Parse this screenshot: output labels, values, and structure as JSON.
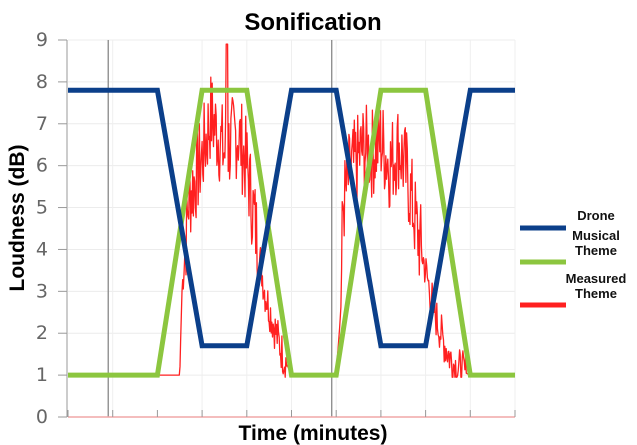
{
  "chart_data": {
    "type": "line",
    "title": "Sonification",
    "xlabel": "Time (minutes)",
    "ylabel": "Loudness (dB)",
    "ylim": [
      0,
      9
    ],
    "yticks": [
      0,
      1,
      2,
      3,
      4,
      5,
      6,
      7,
      8,
      9
    ],
    "xlim": [
      0,
      100
    ],
    "grid": true,
    "legend_position": "right",
    "series": [
      {
        "name": "Drone",
        "color": "#0b3f8a",
        "x": [
          0,
          20,
          30,
          40,
          50,
          60,
          70,
          80,
          90,
          100
        ],
        "y": [
          7.8,
          7.8,
          1.7,
          1.7,
          7.8,
          7.8,
          1.7,
          1.7,
          7.8,
          7.8
        ]
      },
      {
        "name": "Musical Theme",
        "color": "#8cc63f",
        "x": [
          0,
          20,
          30,
          40,
          50,
          60,
          70,
          80,
          90,
          100
        ],
        "y": [
          1,
          1,
          7.8,
          7.8,
          1,
          1,
          7.8,
          7.8,
          1,
          1
        ]
      },
      {
        "name": "Measured Theme",
        "color": "#ff2020",
        "x": [
          0,
          25,
          25.5,
          27,
          30,
          32,
          35,
          38,
          40,
          42,
          44,
          46,
          48,
          50,
          60,
          61,
          61.5,
          63,
          66,
          68,
          70,
          72,
          74,
          76,
          78,
          80,
          82,
          84,
          86,
          88,
          90,
          100
        ],
        "y": [
          1,
          1,
          3,
          5.2,
          6.2,
          7.2,
          6.3,
          6.8,
          6.0,
          4.5,
          3.0,
          2.2,
          1.5,
          1,
          1,
          2.5,
          5.0,
          5.8,
          6.4,
          6.3,
          6.6,
          6.0,
          6.5,
          5.7,
          4.5,
          3.5,
          2.5,
          1.8,
          1.3,
          1.1,
          1,
          1
        ],
        "spike": {
          "x": 35.5,
          "y": 8.9
        }
      }
    ],
    "legend": [
      {
        "label_lines": [
          "Drone"
        ],
        "color": "#0b3f8a"
      },
      {
        "label_lines": [
          "Musical",
          "Theme"
        ],
        "color": "#8cc63f"
      },
      {
        "label_lines": [
          "Measured",
          "Theme"
        ],
        "color": "#ff2020"
      }
    ]
  }
}
